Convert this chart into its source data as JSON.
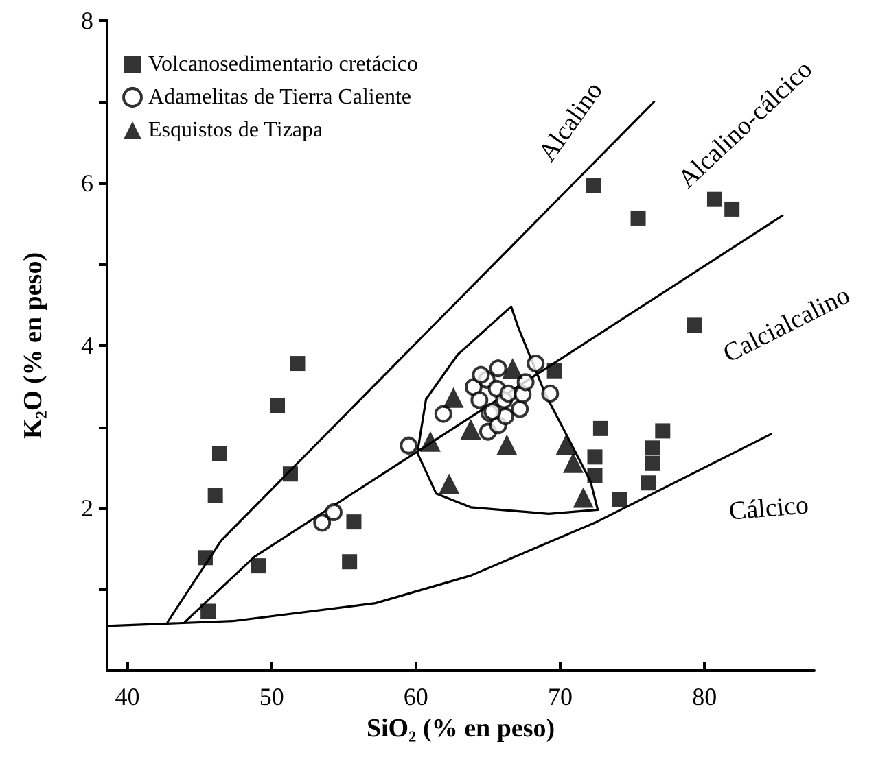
{
  "chart_data": {
    "type": "scatter",
    "xlabel": "SiO₂ (% en peso)",
    "ylabel": "K₂O (% en peso)",
    "xlim": [
      38.6,
      87.6
    ],
    "xticks": [
      40,
      50,
      60,
      70,
      80
    ],
    "ylim": [
      0,
      8
    ],
    "yticks": [
      {
        "value": 1,
        "label": null
      },
      2,
      {
        "value": 3,
        "label": null
      },
      4,
      {
        "value": 5,
        "label": null
      },
      6,
      {
        "value": 7,
        "label": null
      },
      8
    ],
    "grid": false,
    "legend": "top left",
    "line_style": "solid",
    "series": [
      {
        "name": "Volcanosedimentario cretácico",
        "type": "scatter",
        "marker": "square",
        "color": "#000000",
        "x": [
          45.6,
          45.4,
          49.1,
          55.4,
          55.7,
          46.1,
          46.4,
          51.3,
          50.4,
          51.8,
          69.6,
          72.8,
          72.4,
          72.4,
          74.1,
          76.1,
          76.4,
          76.4,
          77.1,
          72.3,
          75.4,
          80.7,
          81.9,
          79.3
        ],
        "values": [
          0.73,
          1.39,
          1.29,
          1.34,
          1.83,
          2.16,
          2.67,
          2.42,
          3.26,
          3.78,
          3.69,
          2.98,
          2.63,
          2.4,
          2.11,
          2.31,
          2.55,
          2.74,
          2.95,
          5.97,
          5.57,
          5.8,
          5.68,
          4.25
        ]
      },
      {
        "name": "Adamelitas de Tierra Caliente",
        "type": "scatter",
        "marker": "circle",
        "color": "#000000",
        "x": [
          59.5,
          53.5,
          54.3,
          61.9,
          64.0,
          64.9,
          64.4,
          65.0,
          65.1,
          65.7,
          65.7,
          66.2,
          65.3,
          66.1,
          65.6,
          66.4,
          67.2,
          67.4,
          67.6,
          68.3,
          69.3,
          64.5
        ],
        "values": [
          2.77,
          1.82,
          1.95,
          3.16,
          3.49,
          3.58,
          3.33,
          2.94,
          3.17,
          3.72,
          3.02,
          3.13,
          3.19,
          3.33,
          3.47,
          3.41,
          3.22,
          3.4,
          3.55,
          3.78,
          3.41,
          3.64
        ]
      },
      {
        "name": "Esquistos de Tizapa",
        "type": "scatter",
        "marker": "triangle",
        "color": "#000000",
        "x": [
          62.6,
          61.0,
          62.3,
          63.8,
          66.7,
          66.3,
          70.4,
          70.9,
          71.6
        ],
        "values": [
          3.36,
          2.82,
          2.3,
          2.97,
          3.72,
          2.78,
          2.78,
          2.56,
          2.13
        ]
      },
      {
        "type": "line",
        "marker": "none",
        "color": "#000000",
        "x": [
          42.8,
          46.5,
          76.5
        ],
        "values": [
          0.6,
          1.6,
          7.0
        ]
      },
      {
        "type": "line",
        "marker": "none",
        "color": "#000000",
        "x": [
          44.0,
          48.8,
          85.4
        ],
        "values": [
          0.6,
          1.4,
          5.6
        ]
      },
      {
        "type": "line",
        "marker": "none",
        "color": "#000000",
        "x": [
          38.6,
          47.3,
          57.2,
          63.8,
          72.4,
          84.6
        ],
        "values": [
          0.55,
          0.61,
          0.83,
          1.17,
          1.82,
          2.91
        ]
      },
      {
        "type": "line",
        "marker": "none",
        "color": "#000000",
        "x": [
          60.1,
          60.7,
          62.9,
          66.6,
          67.1,
          69.0,
          70.5,
          72.1,
          72.6
        ],
        "values": [
          2.68,
          3.34,
          3.89,
          4.48,
          4.22,
          3.39,
          2.88,
          2.33,
          1.98
        ]
      },
      {
        "type": "line",
        "marker": "none",
        "color": "#000000",
        "x": [
          60.1,
          61.4,
          63.8,
          69.2,
          72.6
        ],
        "values": [
          2.68,
          2.18,
          2.01,
          1.93,
          1.98
        ]
      }
    ],
    "annotations": [
      "Alcalino",
      "Alcalino-cálcico",
      "Calcialcalino",
      "Cálcico"
    ]
  }
}
